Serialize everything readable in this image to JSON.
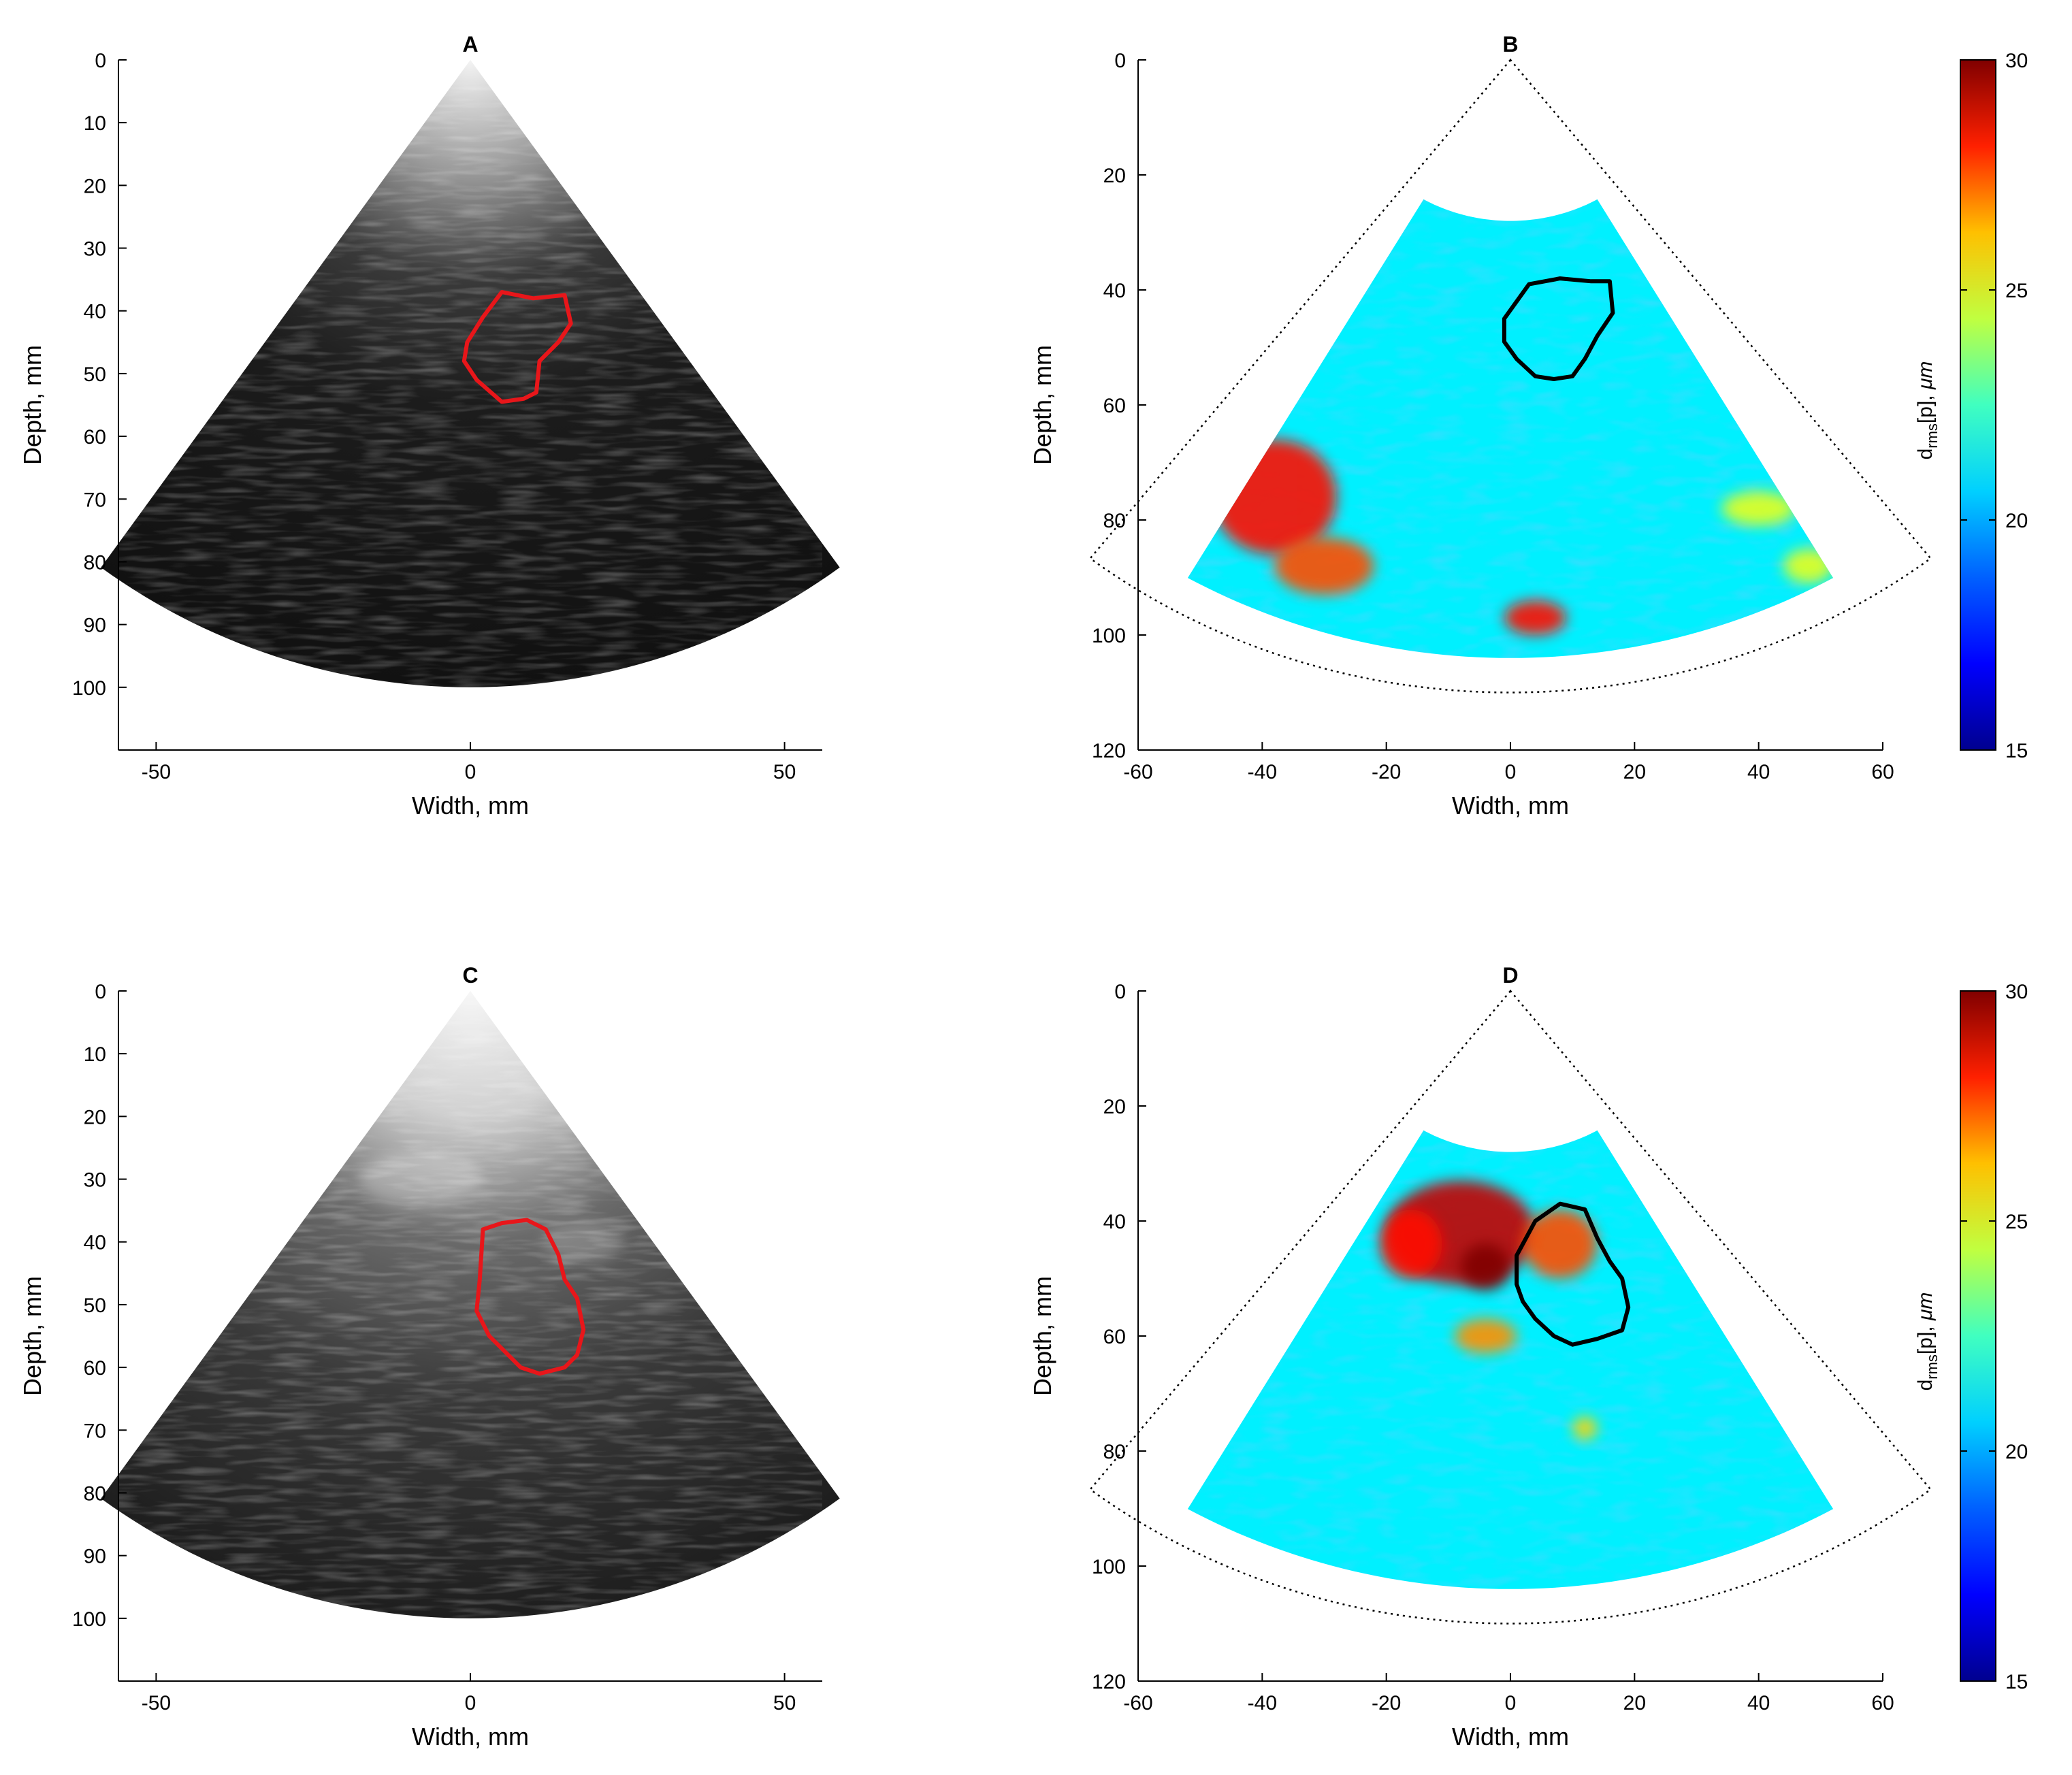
{
  "figure": {
    "panels": [
      "A",
      "B",
      "C",
      "D"
    ]
  },
  "colors": {
    "roi_bmode": "#e8161a",
    "roi_map": "#000000",
    "axis": "#000000",
    "jet": [
      "#00008f",
      "#0000ff",
      "#0080ff",
      "#00ffff",
      "#80ff80",
      "#ffff00",
      "#ff8000",
      "#ff0000",
      "#800000"
    ]
  },
  "chart_data": [
    {
      "id": "A",
      "type": "heatmap",
      "title": "A",
      "subtype": "b-mode ultrasound sector (grayscale)",
      "xlabel": "Width, mm",
      "ylabel": "Depth, mm",
      "xlim": [
        -56,
        56
      ],
      "ylim": [
        0,
        110
      ],
      "xticks": [
        -50,
        0,
        50
      ],
      "yticks": [
        0,
        10,
        20,
        30,
        40,
        50,
        60,
        70,
        80,
        90,
        100
      ],
      "sector": {
        "apex": [
          0,
          0
        ],
        "half_angle_deg": 36,
        "max_depth": 100
      },
      "roi_contour": {
        "color": "red",
        "points": [
          [
            2,
            41
          ],
          [
            5,
            37
          ],
          [
            10,
            38
          ],
          [
            15,
            37.5
          ],
          [
            16,
            42
          ],
          [
            14,
            45
          ],
          [
            11,
            48
          ],
          [
            10.5,
            53
          ],
          [
            8.5,
            54
          ],
          [
            5,
            54.5
          ],
          [
            1,
            51
          ],
          [
            -1,
            48
          ],
          [
            -0.5,
            45
          ]
        ]
      }
    },
    {
      "id": "B",
      "type": "heatmap",
      "title": "B",
      "subtype": "d_rms[p] displacement map",
      "xlabel": "Width, mm",
      "ylabel": "Depth, mm",
      "xlim": [
        -60,
        60
      ],
      "ylim": [
        0,
        120
      ],
      "xticks": [
        -60,
        -40,
        -20,
        0,
        20,
        40,
        60
      ],
      "yticks": [
        0,
        20,
        40,
        60,
        80,
        100,
        120
      ],
      "sector_outline": {
        "apex": [
          0,
          0
        ],
        "half_angle_deg": 38,
        "max_depth": 110,
        "style": "dotted"
      },
      "data_region": {
        "min_depth": 28,
        "max_depth": 104,
        "half_angle_deg": 30
      },
      "roi_contour": {
        "color": "black",
        "points": [
          [
            -1,
            45
          ],
          [
            3,
            39
          ],
          [
            8,
            38
          ],
          [
            13,
            38.5
          ],
          [
            16,
            38.5
          ],
          [
            16.5,
            44
          ],
          [
            14,
            48
          ],
          [
            12,
            52
          ],
          [
            10,
            55
          ],
          [
            7,
            55.5
          ],
          [
            4,
            55
          ],
          [
            1,
            52
          ],
          [
            -1,
            49
          ]
        ]
      },
      "colorbar": {
        "label": "d_rms[p], μm",
        "label_main": "d",
        "label_sub": "rms",
        "label_rest": "[p], ",
        "label_unit": "μm",
        "min": 15,
        "max": 30,
        "ticks": [
          15,
          20,
          25,
          30
        ],
        "colormap": "jet"
      },
      "hotspots": [
        {
          "x": -38,
          "y": 76,
          "rx": 10,
          "ry": 10,
          "value": 28
        },
        {
          "x": -30,
          "y": 88,
          "rx": 8,
          "ry": 5,
          "value": 27
        },
        {
          "x": 4,
          "y": 97,
          "rx": 5,
          "ry": 3,
          "value": 28
        },
        {
          "x": 40,
          "y": 78,
          "rx": 6,
          "ry": 3,
          "value": 24
        },
        {
          "x": 48,
          "y": 88,
          "rx": 4,
          "ry": 3,
          "value": 24
        }
      ]
    },
    {
      "id": "C",
      "type": "heatmap",
      "title": "C",
      "subtype": "b-mode ultrasound sector (grayscale)",
      "xlabel": "Width, mm",
      "ylabel": "Depth, mm",
      "xlim": [
        -56,
        56
      ],
      "ylim": [
        0,
        110
      ],
      "xticks": [
        -50,
        0,
        50
      ],
      "yticks": [
        0,
        10,
        20,
        30,
        40,
        50,
        60,
        70,
        80,
        90,
        100
      ],
      "sector": {
        "apex": [
          0,
          0
        ],
        "half_angle_deg": 36,
        "max_depth": 100
      },
      "roi_contour": {
        "color": "red",
        "points": [
          [
            2,
            38
          ],
          [
            5,
            37
          ],
          [
            9,
            36.5
          ],
          [
            12,
            38
          ],
          [
            14,
            42
          ],
          [
            15,
            46
          ],
          [
            17,
            49
          ],
          [
            18,
            54
          ],
          [
            17,
            58
          ],
          [
            15,
            60
          ],
          [
            11,
            61
          ],
          [
            8,
            60
          ],
          [
            5,
            57
          ],
          [
            3,
            55
          ],
          [
            1,
            51
          ],
          [
            1.5,
            46
          ]
        ]
      }
    },
    {
      "id": "D",
      "type": "heatmap",
      "title": "D",
      "subtype": "d_rms[p] displacement map",
      "xlabel": "Width, mm",
      "ylabel": "Depth, mm",
      "xlim": [
        -60,
        60
      ],
      "ylim": [
        0,
        120
      ],
      "xticks": [
        -60,
        -40,
        -20,
        0,
        20,
        40,
        60
      ],
      "yticks": [
        0,
        20,
        40,
        60,
        80,
        100,
        120
      ],
      "sector_outline": {
        "apex": [
          0,
          0
        ],
        "half_angle_deg": 38,
        "max_depth": 110,
        "style": "dotted"
      },
      "data_region": {
        "min_depth": 28,
        "max_depth": 104,
        "half_angle_deg": 30
      },
      "roi_contour": {
        "color": "black",
        "points": [
          [
            1,
            46
          ],
          [
            4,
            40
          ],
          [
            8,
            37
          ],
          [
            12,
            38
          ],
          [
            14,
            43
          ],
          [
            16,
            47
          ],
          [
            18,
            50
          ],
          [
            19,
            55
          ],
          [
            18,
            59
          ],
          [
            14,
            60.5
          ],
          [
            10,
            61.5
          ],
          [
            7,
            60
          ],
          [
            4,
            57
          ],
          [
            2,
            54
          ],
          [
            1,
            51
          ]
        ]
      },
      "colorbar": {
        "label": "d_rms[p], μm",
        "label_main": "d",
        "label_sub": "rms",
        "label_rest": "[p], ",
        "label_unit": "μm",
        "min": 15,
        "max": 30,
        "ticks": [
          15,
          20,
          25,
          30
        ],
        "colormap": "jet"
      },
      "hotspots": [
        {
          "x": -8,
          "y": 42,
          "rx": 12,
          "ry": 9,
          "value": 29
        },
        {
          "x": -4,
          "y": 48,
          "rx": 4,
          "ry": 4,
          "value": 30
        },
        {
          "x": -16,
          "y": 44,
          "rx": 5,
          "ry": 6,
          "value": 28
        },
        {
          "x": 8,
          "y": 44,
          "rx": 6,
          "ry": 6,
          "value": 27
        },
        {
          "x": -4,
          "y": 60,
          "rx": 5,
          "ry": 3,
          "value": 26
        },
        {
          "x": 12,
          "y": 76,
          "rx": 2,
          "ry": 2,
          "value": 25
        }
      ]
    }
  ]
}
